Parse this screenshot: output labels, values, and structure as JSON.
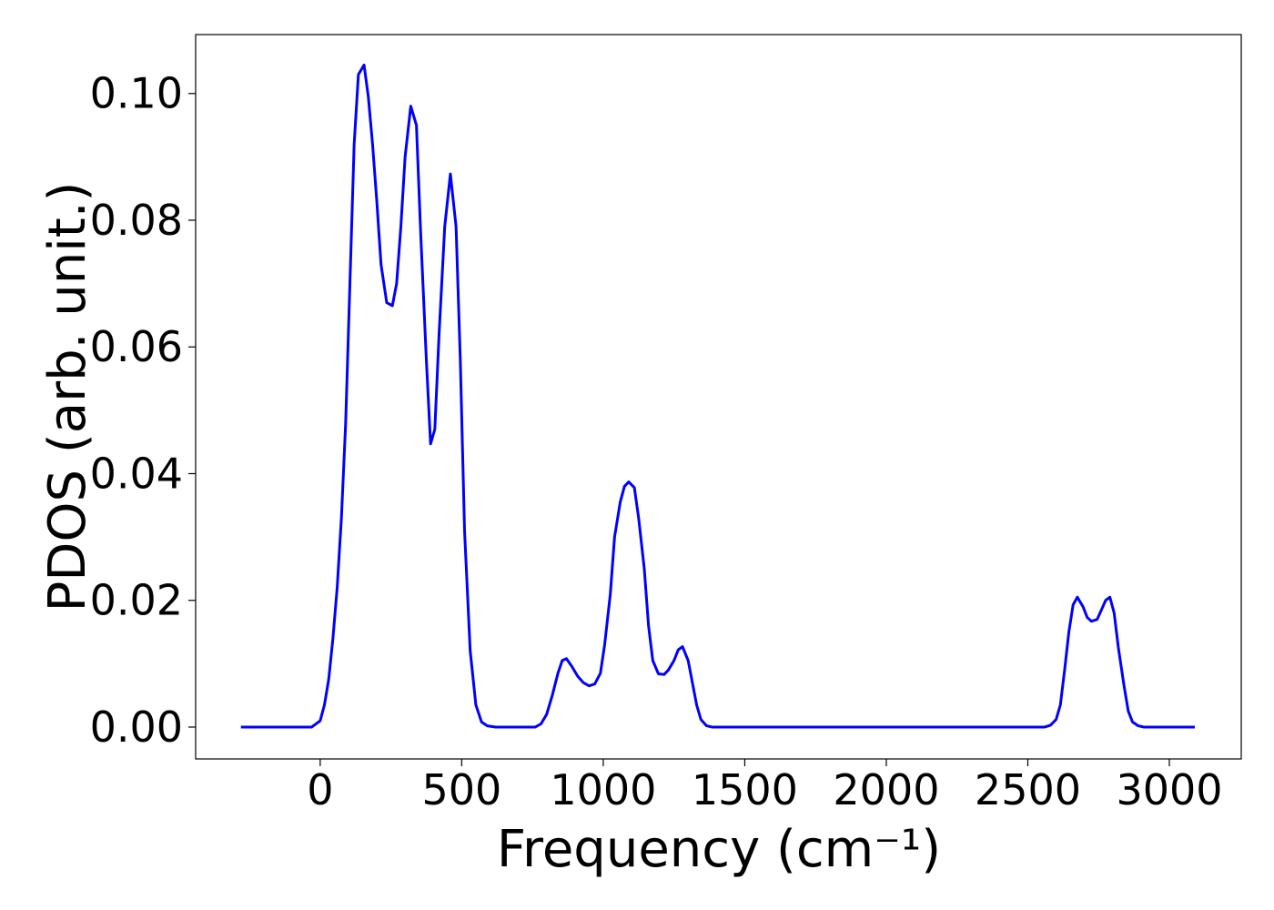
{
  "chart_data": {
    "type": "line",
    "x_label": "Frequency (cm⁻¹)",
    "y_label": "PDOS (arb. unit.)",
    "xlim": [
      -440,
      3254
    ],
    "ylim": [
      -0.00503,
      0.1093
    ],
    "xticks": [
      0,
      500,
      1000,
      1500,
      2000,
      2500,
      3000
    ],
    "yticks": [
      {
        "value": 0,
        "label": "0.00"
      },
      {
        "value": 0.02,
        "label": "0.02"
      },
      {
        "value": 0.04,
        "label": "0.04"
      },
      {
        "value": 0.06,
        "label": "0.06"
      },
      {
        "value": 0.08,
        "label": "0.08"
      },
      {
        "value": 0.1,
        "label": "0.10"
      }
    ],
    "grid": false,
    "x": [
      -280,
      -30,
      0,
      15,
      30,
      45,
      60,
      75,
      90,
      105,
      120,
      135,
      155,
      170,
      185,
      200,
      215,
      235,
      255,
      270,
      285,
      300,
      320,
      340,
      355,
      375,
      390,
      405,
      420,
      440,
      460,
      480,
      495,
      510,
      530,
      550,
      570,
      590,
      620,
      760,
      780,
      800,
      820,
      840,
      855,
      870,
      890,
      910,
      930,
      950,
      970,
      990,
      1005,
      1025,
      1040,
      1060,
      1075,
      1090,
      1110,
      1125,
      1145,
      1160,
      1175,
      1195,
      1215,
      1230,
      1250,
      1265,
      1280,
      1300,
      1315,
      1330,
      1345,
      1365,
      1385,
      2560,
      2580,
      2600,
      2615,
      2630,
      2645,
      2660,
      2675,
      2695,
      2710,
      2725,
      2745,
      2760,
      2775,
      2790,
      2805,
      2820,
      2840,
      2855,
      2870,
      2890,
      2910,
      3090
    ],
    "series": [
      {
        "color": "#0000ff",
        "values": [
          0,
          0,
          0.001,
          0.0035,
          0.0075,
          0.014,
          0.022,
          0.033,
          0.048,
          0.07,
          0.092,
          0.103,
          0.1045,
          0.0995,
          0.092,
          0.083,
          0.073,
          0.067,
          0.0665,
          0.07,
          0.079,
          0.09,
          0.098,
          0.095,
          0.078,
          0.058,
          0.0447,
          0.047,
          0.062,
          0.079,
          0.0873,
          0.079,
          0.058,
          0.031,
          0.012,
          0.0035,
          0.0008,
          0.0002,
          0,
          0,
          0.0005,
          0.002,
          0.005,
          0.0085,
          0.0105,
          0.0108,
          0.0095,
          0.008,
          0.007,
          0.0065,
          0.0068,
          0.0085,
          0.013,
          0.021,
          0.03,
          0.0355,
          0.038,
          0.0387,
          0.0378,
          0.033,
          0.025,
          0.016,
          0.0105,
          0.0084,
          0.0083,
          0.009,
          0.0105,
          0.0122,
          0.0127,
          0.0105,
          0.007,
          0.0035,
          0.0012,
          0.0002,
          0,
          0,
          0.0003,
          0.0012,
          0.0035,
          0.009,
          0.015,
          0.0193,
          0.0205,
          0.019,
          0.0173,
          0.0167,
          0.017,
          0.0185,
          0.02,
          0.0205,
          0.018,
          0.0125,
          0.0065,
          0.0025,
          0.0008,
          0.0002,
          0,
          0
        ]
      }
    ]
  }
}
